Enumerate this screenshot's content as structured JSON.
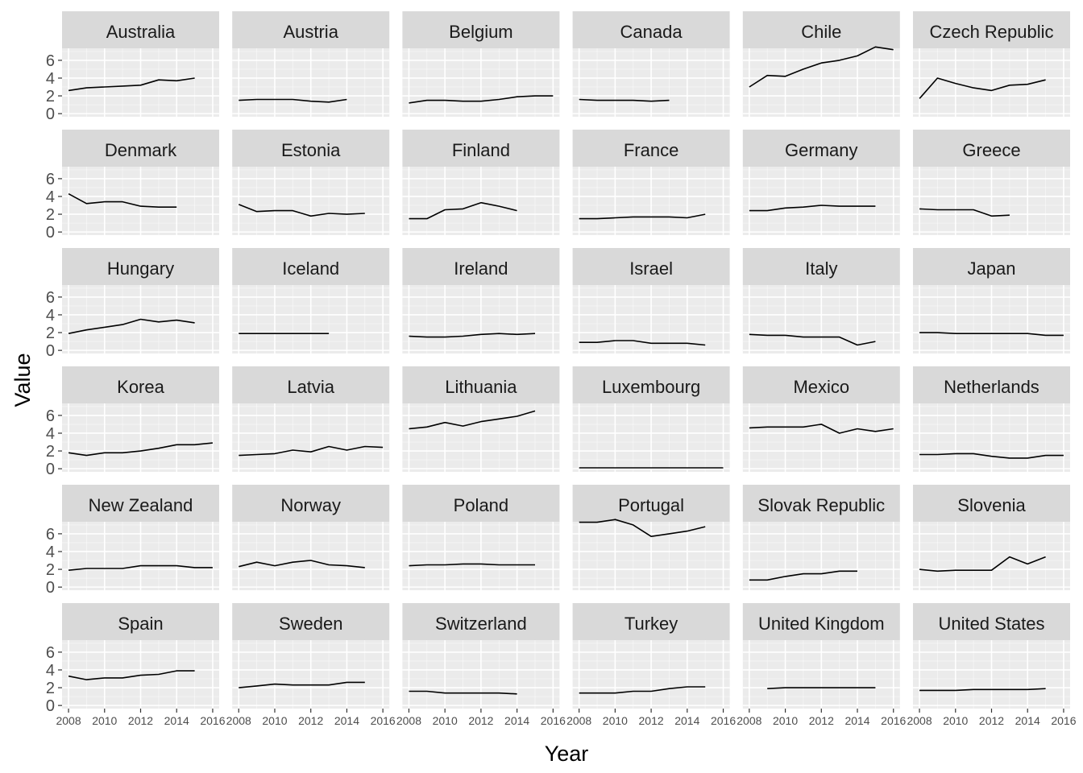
{
  "chart_data": {
    "type": "line",
    "xlabel": "Year",
    "ylabel": "Value",
    "xlim": [
      2008,
      2016
    ],
    "ylim": [
      0,
      7
    ],
    "x_ticks": [
      "2008",
      "2010",
      "2012",
      "2014",
      "2016"
    ],
    "y_ticks": [
      "0",
      "2",
      "4",
      "6"
    ],
    "grid": true,
    "layout": "facet_wrap",
    "colors": {
      "panel_bg": "#ebebeb",
      "strip_bg": "#d9d9d9",
      "grid_major": "#ffffff",
      "line": "#000000",
      "tick_text": "#4d4d4d"
    },
    "series": [
      {
        "name": "Australia",
        "x": [
          2008,
          2009,
          2010,
          2011,
          2012,
          2013,
          2014,
          2015
        ],
        "values": [
          2.6,
          2.9,
          3.0,
          3.1,
          3.2,
          3.8,
          3.7,
          4.0
        ]
      },
      {
        "name": "Austria",
        "x": [
          2008,
          2009,
          2010,
          2011,
          2012,
          2013,
          2014
        ],
        "values": [
          1.5,
          1.6,
          1.6,
          1.6,
          1.4,
          1.3,
          1.6
        ]
      },
      {
        "name": "Belgium",
        "x": [
          2008,
          2009,
          2010,
          2011,
          2012,
          2013,
          2014,
          2015,
          2016
        ],
        "values": [
          1.2,
          1.5,
          1.5,
          1.4,
          1.4,
          1.6,
          1.9,
          2.0,
          2.0
        ]
      },
      {
        "name": "Canada",
        "x": [
          2008,
          2009,
          2010,
          2011,
          2012,
          2013
        ],
        "values": [
          1.6,
          1.5,
          1.5,
          1.5,
          1.4,
          1.5
        ]
      },
      {
        "name": "Chile",
        "x": [
          2008,
          2009,
          2010,
          2011,
          2012,
          2013,
          2014,
          2015,
          2016
        ],
        "values": [
          3.0,
          4.3,
          4.2,
          5.0,
          5.7,
          6.0,
          6.5,
          7.5,
          7.2
        ]
      },
      {
        "name": "Czech Republic",
        "x": [
          2008,
          2009,
          2010,
          2011,
          2012,
          2013,
          2014,
          2015
        ],
        "values": [
          1.7,
          4.0,
          3.4,
          2.9,
          2.6,
          3.2,
          3.3,
          3.8
        ]
      },
      {
        "name": "Denmark",
        "x": [
          2008,
          2009,
          2010,
          2011,
          2012,
          2013,
          2014
        ],
        "values": [
          4.3,
          3.2,
          3.4,
          3.4,
          2.9,
          2.8,
          2.8
        ]
      },
      {
        "name": "Estonia",
        "x": [
          2008,
          2009,
          2010,
          2011,
          2012,
          2013,
          2014,
          2015
        ],
        "values": [
          3.1,
          2.3,
          2.4,
          2.4,
          1.8,
          2.1,
          2.0,
          2.1
        ]
      },
      {
        "name": "Finland",
        "x": [
          2008,
          2009,
          2010,
          2011,
          2012,
          2013,
          2014
        ],
        "values": [
          1.5,
          1.5,
          2.5,
          2.6,
          3.3,
          2.9,
          2.4
        ]
      },
      {
        "name": "France",
        "x": [
          2008,
          2009,
          2010,
          2011,
          2012,
          2013,
          2014,
          2015
        ],
        "values": [
          1.5,
          1.5,
          1.6,
          1.7,
          1.7,
          1.7,
          1.6,
          2.0
        ]
      },
      {
        "name": "Germany",
        "x": [
          2008,
          2009,
          2010,
          2011,
          2012,
          2013,
          2014,
          2015
        ],
        "values": [
          2.4,
          2.4,
          2.7,
          2.8,
          3.0,
          2.9,
          2.9,
          2.9
        ]
      },
      {
        "name": "Greece",
        "x": [
          2008,
          2009,
          2010,
          2011,
          2012,
          2013
        ],
        "values": [
          2.6,
          2.5,
          2.5,
          2.5,
          1.8,
          1.9
        ]
      },
      {
        "name": "Hungary",
        "x": [
          2008,
          2009,
          2010,
          2011,
          2012,
          2013,
          2014,
          2015
        ],
        "values": [
          1.9,
          2.3,
          2.6,
          2.9,
          3.5,
          3.2,
          3.4,
          3.1
        ]
      },
      {
        "name": "Iceland",
        "x": [
          2008,
          2009,
          2010,
          2011,
          2012,
          2013
        ],
        "values": [
          1.9,
          1.9,
          1.9,
          1.9,
          1.9,
          1.9
        ]
      },
      {
        "name": "Ireland",
        "x": [
          2008,
          2009,
          2010,
          2011,
          2012,
          2013,
          2014,
          2015
        ],
        "values": [
          1.6,
          1.5,
          1.5,
          1.6,
          1.8,
          1.9,
          1.8,
          1.9
        ]
      },
      {
        "name": "Israel",
        "x": [
          2008,
          2009,
          2010,
          2011,
          2012,
          2013,
          2014,
          2015
        ],
        "values": [
          0.9,
          0.9,
          1.1,
          1.1,
          0.8,
          0.8,
          0.8,
          0.6
        ]
      },
      {
        "name": "Italy",
        "x": [
          2008,
          2009,
          2010,
          2011,
          2012,
          2013,
          2014,
          2015
        ],
        "values": [
          1.8,
          1.7,
          1.7,
          1.5,
          1.5,
          1.5,
          0.6,
          1.0
        ]
      },
      {
        "name": "Japan",
        "x": [
          2008,
          2009,
          2010,
          2011,
          2012,
          2013,
          2014,
          2015,
          2016
        ],
        "values": [
          2.0,
          2.0,
          1.9,
          1.9,
          1.9,
          1.9,
          1.9,
          1.7,
          1.7
        ]
      },
      {
        "name": "Korea",
        "x": [
          2008,
          2009,
          2010,
          2011,
          2012,
          2013,
          2014,
          2015,
          2016
        ],
        "values": [
          1.8,
          1.5,
          1.8,
          1.8,
          2.0,
          2.3,
          2.7,
          2.7,
          2.9
        ]
      },
      {
        "name": "Latvia",
        "x": [
          2008,
          2009,
          2010,
          2011,
          2012,
          2013,
          2014,
          2015,
          2016
        ],
        "values": [
          1.5,
          1.6,
          1.7,
          2.1,
          1.9,
          2.5,
          2.1,
          2.5,
          2.4
        ]
      },
      {
        "name": "Lithuania",
        "x": [
          2008,
          2009,
          2010,
          2011,
          2012,
          2013,
          2014,
          2015
        ],
        "values": [
          4.5,
          4.7,
          5.2,
          4.8,
          5.3,
          5.6,
          5.9,
          6.5
        ]
      },
      {
        "name": "Luxembourg",
        "x": [
          2008,
          2009,
          2010,
          2011,
          2012,
          2013,
          2014,
          2015,
          2016
        ],
        "values": [
          0.1,
          0.1,
          0.1,
          0.1,
          0.1,
          0.1,
          0.1,
          0.1,
          0.1
        ]
      },
      {
        "name": "Mexico",
        "x": [
          2008,
          2009,
          2010,
          2011,
          2012,
          2013,
          2014,
          2015,
          2016
        ],
        "values": [
          4.6,
          4.7,
          4.7,
          4.7,
          5.0,
          4.0,
          4.5,
          4.2,
          4.5
        ]
      },
      {
        "name": "Netherlands",
        "x": [
          2008,
          2009,
          2010,
          2011,
          2012,
          2013,
          2014,
          2015,
          2016
        ],
        "values": [
          1.6,
          1.6,
          1.7,
          1.7,
          1.4,
          1.2,
          1.2,
          1.5,
          1.5
        ]
      },
      {
        "name": "New Zealand",
        "x": [
          2008,
          2009,
          2010,
          2011,
          2012,
          2013,
          2014,
          2015,
          2016
        ],
        "values": [
          1.9,
          2.1,
          2.1,
          2.1,
          2.4,
          2.4,
          2.4,
          2.2,
          2.2
        ]
      },
      {
        "name": "Norway",
        "x": [
          2008,
          2009,
          2010,
          2011,
          2012,
          2013,
          2014,
          2015
        ],
        "values": [
          2.3,
          2.8,
          2.4,
          2.8,
          3.0,
          2.5,
          2.4,
          2.2
        ]
      },
      {
        "name": "Poland",
        "x": [
          2008,
          2009,
          2010,
          2011,
          2012,
          2013,
          2014,
          2015
        ],
        "values": [
          2.4,
          2.5,
          2.5,
          2.6,
          2.6,
          2.5,
          2.5,
          2.5
        ]
      },
      {
        "name": "Portugal",
        "x": [
          2008,
          2009,
          2010,
          2011,
          2012,
          2013,
          2014,
          2015
        ],
        "values": [
          7.3,
          7.3,
          7.6,
          7.0,
          5.7,
          6.0,
          6.3,
          6.8
        ]
      },
      {
        "name": "Slovak Republic",
        "x": [
          2008,
          2009,
          2010,
          2011,
          2012,
          2013,
          2014
        ],
        "values": [
          0.8,
          0.8,
          1.2,
          1.5,
          1.5,
          1.8,
          1.8
        ]
      },
      {
        "name": "Slovenia",
        "x": [
          2008,
          2009,
          2010,
          2011,
          2012,
          2013,
          2014,
          2015
        ],
        "values": [
          2.0,
          1.8,
          1.9,
          1.9,
          1.9,
          3.4,
          2.6,
          3.4
        ]
      },
      {
        "name": "Spain",
        "x": [
          2008,
          2009,
          2010,
          2011,
          2012,
          2013,
          2014,
          2015
        ],
        "values": [
          3.3,
          2.9,
          3.1,
          3.1,
          3.4,
          3.5,
          3.9,
          3.9
        ]
      },
      {
        "name": "Sweden",
        "x": [
          2008,
          2009,
          2010,
          2011,
          2012,
          2013,
          2014,
          2015
        ],
        "values": [
          2.0,
          2.2,
          2.4,
          2.3,
          2.3,
          2.3,
          2.6,
          2.6
        ]
      },
      {
        "name": "Switzerland",
        "x": [
          2008,
          2009,
          2010,
          2011,
          2012,
          2013,
          2014
        ],
        "values": [
          1.6,
          1.6,
          1.4,
          1.4,
          1.4,
          1.4,
          1.3
        ]
      },
      {
        "name": "Turkey",
        "x": [
          2008,
          2009,
          2010,
          2011,
          2012,
          2013,
          2014,
          2015
        ],
        "values": [
          1.4,
          1.4,
          1.4,
          1.6,
          1.6,
          1.9,
          2.1,
          2.1
        ]
      },
      {
        "name": "United Kingdom",
        "x": [
          2009,
          2010,
          2011,
          2012,
          2013,
          2014,
          2015
        ],
        "values": [
          1.9,
          2.0,
          2.0,
          2.0,
          2.0,
          2.0,
          2.0
        ]
      },
      {
        "name": "United States",
        "x": [
          2008,
          2009,
          2010,
          2011,
          2012,
          2013,
          2014,
          2015
        ],
        "values": [
          1.7,
          1.7,
          1.7,
          1.8,
          1.8,
          1.8,
          1.8,
          1.9
        ]
      }
    ]
  }
}
